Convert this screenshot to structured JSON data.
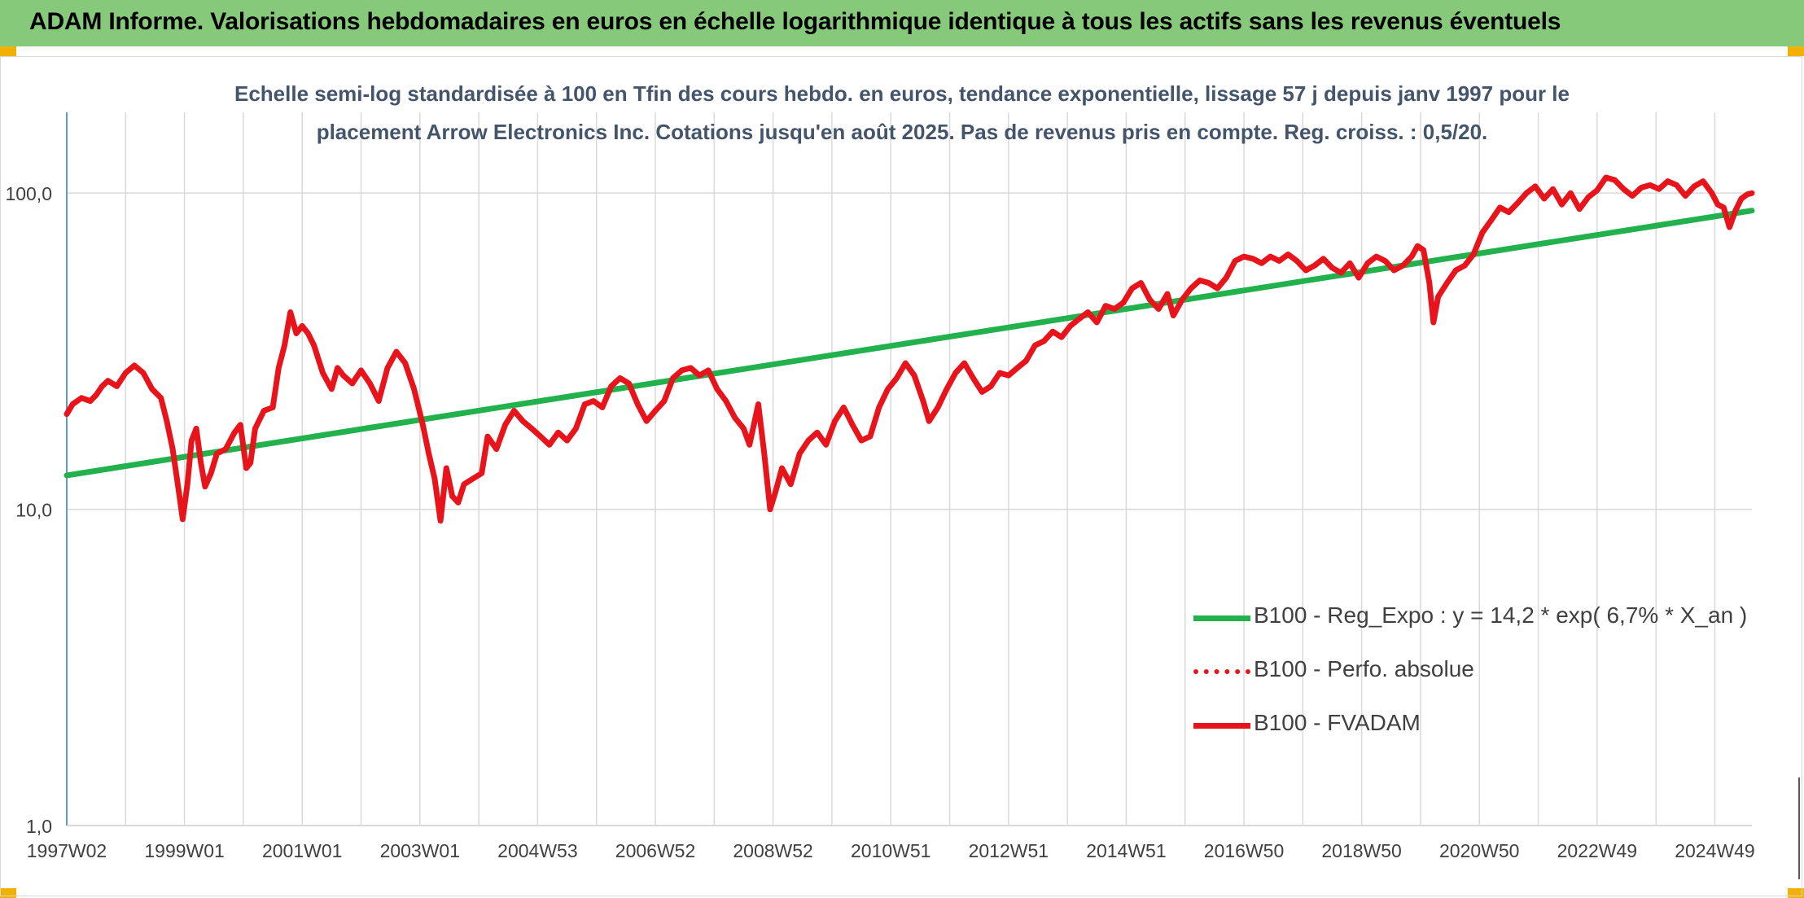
{
  "header": {
    "title": "ADAM Informe. Valorisations hebdomadaires en euros en échelle logarithmique identique à tous les actifs sans les revenus éventuels"
  },
  "colors": {
    "header_bg": "#86c97a",
    "trend": "#22b14c",
    "series": "#e8141c",
    "grid": "#d9d9d9",
    "axis": "#5b9bd5",
    "text": "#404040"
  },
  "chart_data": {
    "type": "line",
    "title_lines": [
      "Echelle semi-log standardisée à 100 en Tfin des cours hebdo. en euros, tendance exponentielle, lissage 57 j depuis janv 1997 pour le",
      "placement Arrow Electronics Inc. Cotations jusqu'en août 2025. Pas de revenus pris en compte. Reg. croiss. : 0,5/20."
    ],
    "y_scale": "log",
    "ylim": [
      1,
      180
    ],
    "y_ticks": [
      {
        "value": 1,
        "label": "1,0"
      },
      {
        "value": 10,
        "label": "10,0"
      },
      {
        "value": 100,
        "label": "100,0"
      }
    ],
    "xlim": [
      1997.0,
      2025.63
    ],
    "x_ticks": [
      {
        "value": 1997.0,
        "label": "1997W02"
      },
      {
        "value": 1999.0,
        "label": "1999W01"
      },
      {
        "value": 2001.0,
        "label": "2001W01"
      },
      {
        "value": 2003.0,
        "label": "2003W01"
      },
      {
        "value": 2005.0,
        "label": "2004W53"
      },
      {
        "value": 2007.0,
        "label": "2006W52"
      },
      {
        "value": 2009.0,
        "label": "2008W52"
      },
      {
        "value": 2011.0,
        "label": "2010W51"
      },
      {
        "value": 2013.0,
        "label": "2012W51"
      },
      {
        "value": 2015.0,
        "label": "2014W51"
      },
      {
        "value": 2017.0,
        "label": "2016W50"
      },
      {
        "value": 2019.0,
        "label": "2018W50"
      },
      {
        "value": 2021.0,
        "label": "2020W50"
      },
      {
        "value": 2023.0,
        "label": "2022W49"
      },
      {
        "value": 2025.0,
        "label": "2024W49"
      }
    ],
    "grid": true,
    "legend_position": "right-bottom",
    "series": [
      {
        "name": "B100 - Reg_Expo : y = 14,2 * exp( 6,7% *  X_an )",
        "style": "solid",
        "color": "#22b14c",
        "points": [
          [
            1997.0,
            12.8
          ],
          [
            2025.63,
            88.0
          ]
        ]
      },
      {
        "name": "B100 - Perfo. absolue",
        "style": "dotted",
        "color": "#e8141c",
        "points": []
      },
      {
        "name": "B100 - FVADAM",
        "style": "solid",
        "color": "#e8141c",
        "points": [
          [
            1997.0,
            20.0
          ],
          [
            1997.1,
            21.5
          ],
          [
            1997.25,
            22.5
          ],
          [
            1997.4,
            22.0
          ],
          [
            1997.5,
            23.0
          ],
          [
            1997.6,
            24.5
          ],
          [
            1997.7,
            25.5
          ],
          [
            1997.85,
            24.5
          ],
          [
            1998.0,
            27.0
          ],
          [
            1998.15,
            28.5
          ],
          [
            1998.3,
            27.0
          ],
          [
            1998.45,
            24.0
          ],
          [
            1998.6,
            22.5
          ],
          [
            1998.7,
            19.0
          ],
          [
            1998.8,
            15.5
          ],
          [
            1998.9,
            11.5
          ],
          [
            1998.97,
            9.3
          ],
          [
            1999.05,
            12.0
          ],
          [
            1999.12,
            16.5
          ],
          [
            1999.2,
            18.0
          ],
          [
            1999.28,
            14.0
          ],
          [
            1999.35,
            11.8
          ],
          [
            1999.45,
            13.0
          ],
          [
            1999.55,
            15.0
          ],
          [
            1999.7,
            15.5
          ],
          [
            1999.85,
            17.5
          ],
          [
            1999.95,
            18.5
          ],
          [
            2000.05,
            13.5
          ],
          [
            2000.12,
            14.0
          ],
          [
            2000.2,
            18.0
          ],
          [
            2000.35,
            20.5
          ],
          [
            2000.5,
            21.0
          ],
          [
            2000.6,
            28.0
          ],
          [
            2000.7,
            33.0
          ],
          [
            2000.8,
            42.0
          ],
          [
            2000.9,
            36.0
          ],
          [
            2001.0,
            38.0
          ],
          [
            2001.1,
            36.0
          ],
          [
            2001.2,
            33.0
          ],
          [
            2001.35,
            27.0
          ],
          [
            2001.5,
            24.0
          ],
          [
            2001.6,
            28.0
          ],
          [
            2001.7,
            26.5
          ],
          [
            2001.85,
            25.0
          ],
          [
            2002.0,
            27.5
          ],
          [
            2002.15,
            25.0
          ],
          [
            2002.3,
            22.0
          ],
          [
            2002.45,
            28.0
          ],
          [
            2002.6,
            31.5
          ],
          [
            2002.75,
            29.0
          ],
          [
            2002.9,
            24.0
          ],
          [
            2003.05,
            18.5
          ],
          [
            2003.15,
            15.0
          ],
          [
            2003.25,
            12.5
          ],
          [
            2003.35,
            9.2
          ],
          [
            2003.45,
            13.5
          ],
          [
            2003.55,
            11.0
          ],
          [
            2003.65,
            10.5
          ],
          [
            2003.75,
            12.0
          ],
          [
            2003.9,
            12.5
          ],
          [
            2004.05,
            13.0
          ],
          [
            2004.15,
            17.0
          ],
          [
            2004.3,
            15.5
          ],
          [
            2004.45,
            18.5
          ],
          [
            2004.6,
            20.5
          ],
          [
            2004.75,
            19.0
          ],
          [
            2004.9,
            18.0
          ],
          [
            2005.05,
            17.0
          ],
          [
            2005.2,
            16.0
          ],
          [
            2005.35,
            17.5
          ],
          [
            2005.5,
            16.5
          ],
          [
            2005.65,
            18.0
          ],
          [
            2005.8,
            21.5
          ],
          [
            2005.95,
            22.0
          ],
          [
            2006.1,
            21.0
          ],
          [
            2006.25,
            24.5
          ],
          [
            2006.4,
            26.0
          ],
          [
            2006.55,
            25.0
          ],
          [
            2006.7,
            21.5
          ],
          [
            2006.85,
            19.0
          ],
          [
            2007.0,
            20.5
          ],
          [
            2007.15,
            22.0
          ],
          [
            2007.3,
            26.0
          ],
          [
            2007.45,
            27.5
          ],
          [
            2007.6,
            28.0
          ],
          [
            2007.75,
            26.5
          ],
          [
            2007.9,
            27.5
          ],
          [
            2008.05,
            24.0
          ],
          [
            2008.2,
            22.0
          ],
          [
            2008.35,
            19.5
          ],
          [
            2008.5,
            18.0
          ],
          [
            2008.6,
            16.0
          ],
          [
            2008.75,
            21.5
          ],
          [
            2008.85,
            15.0
          ],
          [
            2008.95,
            10.0
          ],
          [
            2009.05,
            11.5
          ],
          [
            2009.15,
            13.5
          ],
          [
            2009.3,
            12.0
          ],
          [
            2009.45,
            15.0
          ],
          [
            2009.6,
            16.5
          ],
          [
            2009.75,
            17.5
          ],
          [
            2009.9,
            16.0
          ],
          [
            2010.05,
            19.0
          ],
          [
            2010.2,
            21.0
          ],
          [
            2010.35,
            18.5
          ],
          [
            2010.5,
            16.5
          ],
          [
            2010.65,
            17.0
          ],
          [
            2010.8,
            21.0
          ],
          [
            2010.95,
            24.0
          ],
          [
            2011.1,
            26.0
          ],
          [
            2011.25,
            29.0
          ],
          [
            2011.4,
            26.5
          ],
          [
            2011.55,
            22.0
          ],
          [
            2011.65,
            19.0
          ],
          [
            2011.8,
            21.0
          ],
          [
            2011.95,
            24.0
          ],
          [
            2012.1,
            27.0
          ],
          [
            2012.25,
            29.0
          ],
          [
            2012.4,
            26.0
          ],
          [
            2012.55,
            23.5
          ],
          [
            2012.7,
            24.5
          ],
          [
            2012.85,
            27.0
          ],
          [
            2013.0,
            26.5
          ],
          [
            2013.15,
            28.0
          ],
          [
            2013.3,
            29.5
          ],
          [
            2013.45,
            33.0
          ],
          [
            2013.6,
            34.0
          ],
          [
            2013.75,
            36.5
          ],
          [
            2013.9,
            35.0
          ],
          [
            2014.05,
            38.0
          ],
          [
            2014.2,
            40.0
          ],
          [
            2014.35,
            42.0
          ],
          [
            2014.5,
            39.0
          ],
          [
            2014.65,
            44.0
          ],
          [
            2014.8,
            43.0
          ],
          [
            2014.95,
            45.0
          ],
          [
            2015.1,
            50.0
          ],
          [
            2015.25,
            52.0
          ],
          [
            2015.4,
            46.0
          ],
          [
            2015.55,
            43.0
          ],
          [
            2015.7,
            48.0
          ],
          [
            2015.8,
            41.0
          ],
          [
            2015.95,
            46.0
          ],
          [
            2016.1,
            50.0
          ],
          [
            2016.25,
            53.0
          ],
          [
            2016.4,
            52.0
          ],
          [
            2016.55,
            50.0
          ],
          [
            2016.7,
            54.0
          ],
          [
            2016.85,
            61.0
          ],
          [
            2017.0,
            63.0
          ],
          [
            2017.15,
            62.0
          ],
          [
            2017.3,
            60.0
          ],
          [
            2017.45,
            63.0
          ],
          [
            2017.6,
            61.0
          ],
          [
            2017.75,
            64.0
          ],
          [
            2017.9,
            61.0
          ],
          [
            2018.05,
            57.0
          ],
          [
            2018.2,
            59.0
          ],
          [
            2018.35,
            62.0
          ],
          [
            2018.5,
            58.0
          ],
          [
            2018.65,
            56.0
          ],
          [
            2018.8,
            60.0
          ],
          [
            2018.95,
            54.0
          ],
          [
            2019.1,
            60.0
          ],
          [
            2019.25,
            63.0
          ],
          [
            2019.4,
            61.0
          ],
          [
            2019.55,
            57.0
          ],
          [
            2019.7,
            59.0
          ],
          [
            2019.85,
            63.0
          ],
          [
            2019.95,
            68.0
          ],
          [
            2020.05,
            66.0
          ],
          [
            2020.15,
            52.0
          ],
          [
            2020.22,
            39.0
          ],
          [
            2020.3,
            47.0
          ],
          [
            2020.45,
            52.0
          ],
          [
            2020.6,
            57.0
          ],
          [
            2020.75,
            59.0
          ],
          [
            2020.9,
            64.0
          ],
          [
            2021.05,
            75.0
          ],
          [
            2021.2,
            82.0
          ],
          [
            2021.35,
            90.0
          ],
          [
            2021.5,
            87.0
          ],
          [
            2021.65,
            93.0
          ],
          [
            2021.8,
            100.0
          ],
          [
            2021.95,
            105.0
          ],
          [
            2022.1,
            96.0
          ],
          [
            2022.25,
            103.0
          ],
          [
            2022.4,
            92.0
          ],
          [
            2022.55,
            100.0
          ],
          [
            2022.7,
            89.0
          ],
          [
            2022.85,
            97.0
          ],
          [
            2023.0,
            102.0
          ],
          [
            2023.15,
            112.0
          ],
          [
            2023.3,
            110.0
          ],
          [
            2023.45,
            103.0
          ],
          [
            2023.6,
            98.0
          ],
          [
            2023.75,
            104.0
          ],
          [
            2023.9,
            106.0
          ],
          [
            2024.05,
            103.0
          ],
          [
            2024.2,
            109.0
          ],
          [
            2024.35,
            106.0
          ],
          [
            2024.5,
            98.0
          ],
          [
            2024.65,
            105.0
          ],
          [
            2024.8,
            109.0
          ],
          [
            2024.95,
            100.0
          ],
          [
            2025.05,
            92.0
          ],
          [
            2025.15,
            90.0
          ],
          [
            2025.25,
            78.0
          ],
          [
            2025.35,
            88.0
          ],
          [
            2025.45,
            96.0
          ],
          [
            2025.55,
            99.0
          ],
          [
            2025.63,
            100.0
          ]
        ]
      }
    ]
  }
}
